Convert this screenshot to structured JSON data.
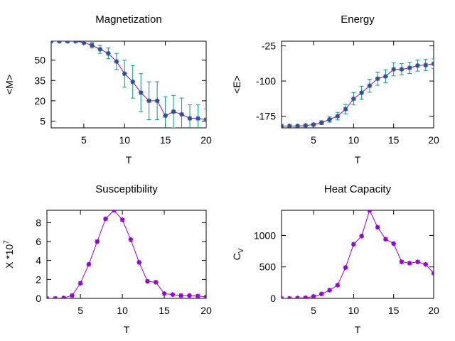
{
  "chart_data": [
    {
      "type": "line",
      "title": "Magnetization",
      "xlabel": "T",
      "ylabel": "<M>",
      "xlim": [
        1,
        20
      ],
      "ylim": [
        0,
        64
      ],
      "xticks": [
        5,
        10,
        15,
        20
      ],
      "yticks": [
        5,
        20,
        35,
        50
      ],
      "x": [
        1,
        2,
        3,
        4,
        5,
        6,
        7,
        8,
        9,
        10,
        11,
        12,
        13,
        14,
        15,
        16,
        17,
        18,
        19,
        20
      ],
      "y": [
        64,
        64,
        64,
        64,
        63,
        61,
        58,
        55,
        49,
        40,
        34,
        26,
        20,
        20,
        9,
        12,
        10,
        7,
        7,
        6
      ],
      "yerr": [
        0.5,
        0.5,
        0.5,
        0.5,
        1,
        2,
        3,
        4,
        6,
        10,
        12,
        14,
        14,
        14,
        14,
        12,
        12,
        10,
        10,
        8
      ],
      "grid": false,
      "colors": {
        "line": "#9400d3",
        "marker": "#2f4f8f",
        "errorbar": "#009e73"
      }
    },
    {
      "type": "line",
      "title": "Energy",
      "xlabel": "T",
      "ylabel": "<E>",
      "xlim": [
        1,
        20
      ],
      "ylim": [
        -200,
        -15
      ],
      "xticks": [
        5,
        10,
        15,
        20
      ],
      "yticks": [
        -175,
        -100,
        -25
      ],
      "x": [
        1,
        2,
        3,
        4,
        5,
        6,
        7,
        8,
        9,
        10,
        11,
        12,
        13,
        14,
        15,
        16,
        17,
        18,
        19,
        20
      ],
      "y": [
        -196,
        -196,
        -196,
        -195,
        -193,
        -189,
        -182,
        -175,
        -160,
        -138,
        -125,
        -110,
        -95,
        -90,
        -75,
        -75,
        -72,
        -67,
        -66,
        -63
      ],
      "yerr": [
        0.5,
        0.5,
        1,
        1,
        2,
        4,
        6,
        8,
        10,
        13,
        14,
        14,
        14,
        14,
        14,
        12,
        12,
        12,
        12,
        10
      ],
      "grid": false,
      "colors": {
        "line": "#9400d3",
        "marker": "#2f4f8f",
        "errorbar": "#009e73"
      }
    },
    {
      "type": "line",
      "title": "Susceptibility",
      "xlabel": "T",
      "ylabel": "X *10",
      "ylabel_sup": "7",
      "xlim": [
        1,
        20
      ],
      "ylim": [
        0,
        9.3
      ],
      "xticks": [
        5,
        10,
        15,
        20
      ],
      "yticks": [
        0,
        2,
        4,
        6,
        8
      ],
      "x": [
        1,
        2,
        3,
        4,
        5,
        6,
        7,
        8,
        9,
        10,
        11,
        12,
        13,
        14,
        15,
        16,
        17,
        18,
        19,
        20
      ],
      "y": [
        0,
        0,
        0.05,
        0.3,
        1.6,
        3.6,
        6.0,
        8.4,
        9.3,
        8.3,
        6.2,
        3.8,
        1.8,
        1.7,
        0.5,
        0.4,
        0.3,
        0.3,
        0.25,
        0.15
      ],
      "grid": false,
      "colors": {
        "line": "#9400d3",
        "marker": "#9400d3"
      }
    },
    {
      "type": "line",
      "title": "Heat Capacity",
      "xlabel": "T",
      "ylabel": "C",
      "ylabel_sub": "V",
      "xlim": [
        1,
        20
      ],
      "ylim": [
        0,
        1400
      ],
      "xticks": [
        5,
        10,
        15,
        20
      ],
      "yticks": [
        0,
        500,
        1000
      ],
      "x": [
        1,
        2,
        3,
        4,
        5,
        6,
        7,
        8,
        9,
        10,
        11,
        12,
        13,
        14,
        15,
        16,
        17,
        18,
        19,
        20
      ],
      "y": [
        0,
        0,
        5,
        10,
        30,
        70,
        130,
        210,
        490,
        860,
        990,
        1400,
        1130,
        940,
        870,
        580,
        560,
        580,
        540,
        400
      ],
      "grid": false,
      "colors": {
        "line": "#9400d3",
        "marker": "#9400d3"
      }
    }
  ]
}
